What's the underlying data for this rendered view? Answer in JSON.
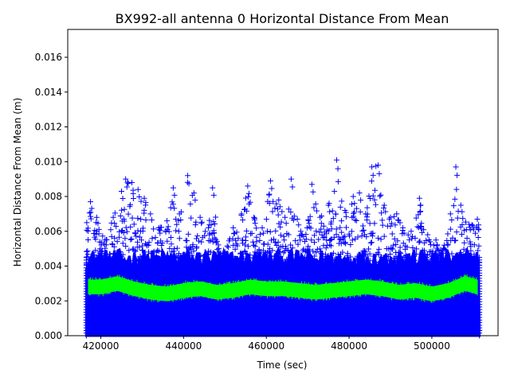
{
  "chart_data": {
    "type": "scatter",
    "title": "BX992-all antenna 0 Horizontal Distance From Mean",
    "xlabel": "Time (sec)",
    "ylabel": "Horizontal Distance From Mean (m)",
    "xlim": [
      412000,
      516000
    ],
    "ylim": [
      0,
      0.0176
    ],
    "x_ticks": [
      420000,
      440000,
      460000,
      480000,
      500000
    ],
    "x_tick_labels": [
      "420000",
      "440000",
      "460000",
      "480000",
      "500000"
    ],
    "y_ticks": [
      0.0,
      0.002,
      0.004,
      0.006,
      0.008,
      0.01,
      0.012,
      0.014,
      0.016
    ],
    "y_tick_labels": [
      "0.000",
      "0.002",
      "0.004",
      "0.006",
      "0.008",
      "0.010",
      "0.012",
      "0.014",
      "0.016"
    ],
    "grid": false,
    "legend": "none",
    "data_range_x": [
      416500,
      511500
    ],
    "series": [
      {
        "marker": "+",
        "color": "#0000ff",
        "dense_band": [
          0.0,
          0.0045
        ],
        "upper_envelope": [
          [
            416600,
            0.0065
          ],
          [
            417500,
            0.0077
          ],
          [
            419000,
            0.0068
          ],
          [
            421000,
            0.0055
          ],
          [
            423000,
            0.0068
          ],
          [
            425000,
            0.0083
          ],
          [
            426000,
            0.009
          ],
          [
            427500,
            0.0088
          ],
          [
            429000,
            0.0084
          ],
          [
            430500,
            0.0079
          ],
          [
            432000,
            0.007
          ],
          [
            434000,
            0.0062
          ],
          [
            436000,
            0.0066
          ],
          [
            437500,
            0.0085
          ],
          [
            439000,
            0.007
          ],
          [
            441000,
            0.0092
          ],
          [
            442500,
            0.0082
          ],
          [
            444000,
            0.0068
          ],
          [
            446000,
            0.0062
          ],
          [
            447000,
            0.0085
          ],
          [
            448500,
            0.005
          ],
          [
            450000,
            0.0048
          ],
          [
            452000,
            0.0062
          ],
          [
            454000,
            0.007
          ],
          [
            455500,
            0.0086
          ],
          [
            457000,
            0.0068
          ],
          [
            459000,
            0.0062
          ],
          [
            461000,
            0.0089
          ],
          [
            463000,
            0.0078
          ],
          [
            464500,
            0.0068
          ],
          [
            466000,
            0.009
          ],
          [
            467500,
            0.0067
          ],
          [
            469000,
            0.0057
          ],
          [
            471000,
            0.0087
          ],
          [
            473000,
            0.0068
          ],
          [
            475000,
            0.0075
          ],
          [
            477000,
            0.0101
          ],
          [
            479000,
            0.0072
          ],
          [
            481000,
            0.008
          ],
          [
            482500,
            0.0082
          ],
          [
            484000,
            0.007
          ],
          [
            485500,
            0.0097
          ],
          [
            487000,
            0.0098
          ],
          [
            488500,
            0.0075
          ],
          [
            490000,
            0.0068
          ],
          [
            491500,
            0.007
          ],
          [
            493000,
            0.0062
          ],
          [
            495000,
            0.006
          ],
          [
            497000,
            0.0079
          ],
          [
            499000,
            0.0058
          ],
          [
            501000,
            0.0055
          ],
          [
            503000,
            0.0052
          ],
          [
            504500,
            0.007
          ],
          [
            505800,
            0.0097
          ],
          [
            507000,
            0.0075
          ],
          [
            509000,
            0.0064
          ],
          [
            511000,
            0.0067
          ]
        ]
      },
      {
        "marker": "line",
        "color": "#00ff00",
        "mean_line": [
          [
            417000,
            0.0028
          ],
          [
            420000,
            0.0028
          ],
          [
            424000,
            0.003
          ],
          [
            428000,
            0.0027
          ],
          [
            432000,
            0.0025
          ],
          [
            436000,
            0.0024
          ],
          [
            440000,
            0.0026
          ],
          [
            444000,
            0.0027
          ],
          [
            448000,
            0.0025
          ],
          [
            452000,
            0.0026
          ],
          [
            456000,
            0.0028
          ],
          [
            460000,
            0.0027
          ],
          [
            464000,
            0.0027
          ],
          [
            468000,
            0.0026
          ],
          [
            472000,
            0.0025
          ],
          [
            476000,
            0.0026
          ],
          [
            480000,
            0.0027
          ],
          [
            484000,
            0.0028
          ],
          [
            488000,
            0.0027
          ],
          [
            492000,
            0.0025
          ],
          [
            496000,
            0.0026
          ],
          [
            500000,
            0.0024
          ],
          [
            504000,
            0.0026
          ],
          [
            508000,
            0.003
          ],
          [
            511000,
            0.0028
          ]
        ],
        "band_halfwidth": 0.0004
      }
    ]
  }
}
